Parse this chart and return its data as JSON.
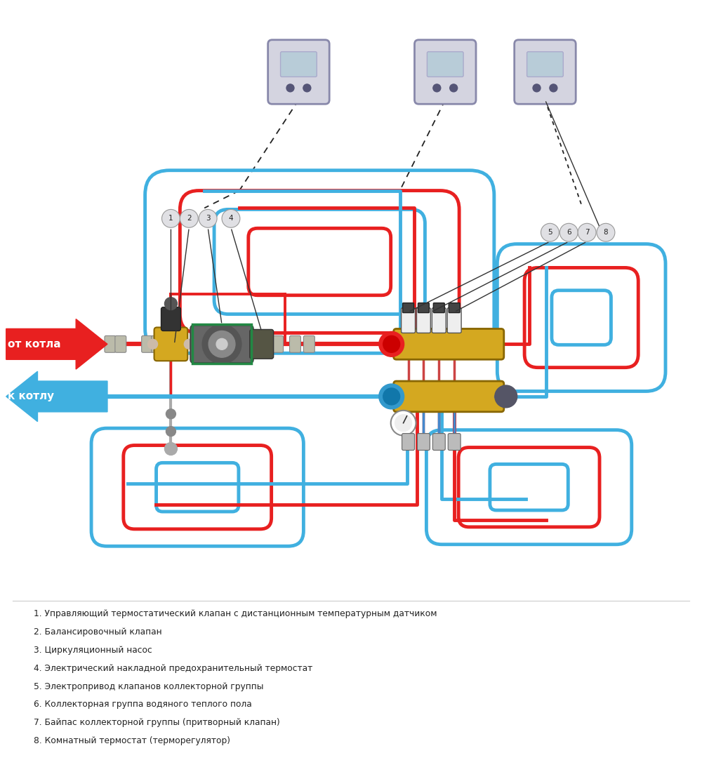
{
  "bg_color": "#ffffff",
  "red_color": "#e82020",
  "blue_color": "#40b0e0",
  "gold_color": "#d4a820",
  "dark_color": "#222222",
  "green_color": "#228844",
  "gray_color": "#aaaaaa",
  "label_bg": "#e0e0e4",
  "legend": [
    "1. Управляющий термостатический клапан с дистанционным температурным датчиком",
    "2. Балансировочный клапан",
    "3. Циркуляционный насос",
    "4. Электрический накладной предохранительный термостат",
    "5. Электропривод клапанов коллекторной группы",
    "6. Коллекторная группа водяного теплого пола",
    "7. Байпас коллекторной группы (притворный клапан)",
    "8. Комнатный термостат (терморегулятор)"
  ],
  "label_from_boiler": "от котла",
  "label_to_boiler": "к котлу",
  "pipe_lw": 4.5,
  "pipe_lw2": 3.5
}
